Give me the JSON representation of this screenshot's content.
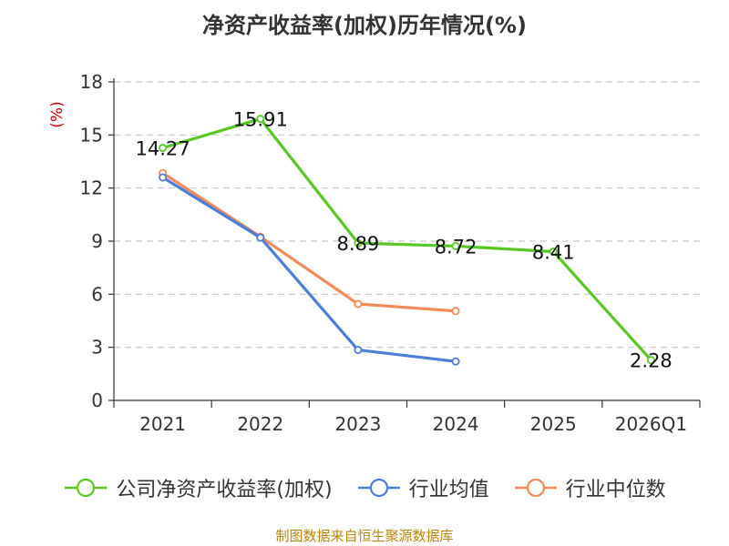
{
  "chart_data": {
    "type": "line",
    "title": "净资产收益率(加权)历年情况(%)",
    "ylabel": "(%)",
    "xlabel": "",
    "categories": [
      "2021",
      "2022",
      "2023",
      "2024",
      "2025",
      "2026Q1"
    ],
    "ylim": [
      0,
      18
    ],
    "yticks": [
      0,
      3,
      6,
      9,
      12,
      15,
      18
    ],
    "grid": true,
    "legend_position": "bottom",
    "series": [
      {
        "name": "公司净资产收益率(加权)",
        "color": "#5bc726",
        "values": [
          14.27,
          15.91,
          8.89,
          8.72,
          8.41,
          2.28
        ],
        "labels": [
          "14.27",
          "15.91",
          "8.89",
          "8.72",
          "8.41",
          "2.28"
        ]
      },
      {
        "name": "行业均值",
        "color": "#4f7ed8",
        "values": [
          12.6,
          9.2,
          2.85,
          2.2,
          null,
          null
        ]
      },
      {
        "name": "行业中位数",
        "color": "#f48b5a",
        "values": [
          12.85,
          9.25,
          5.45,
          5.05,
          null,
          null
        ]
      }
    ]
  },
  "source": "制图数据来自恒生聚源数据库"
}
